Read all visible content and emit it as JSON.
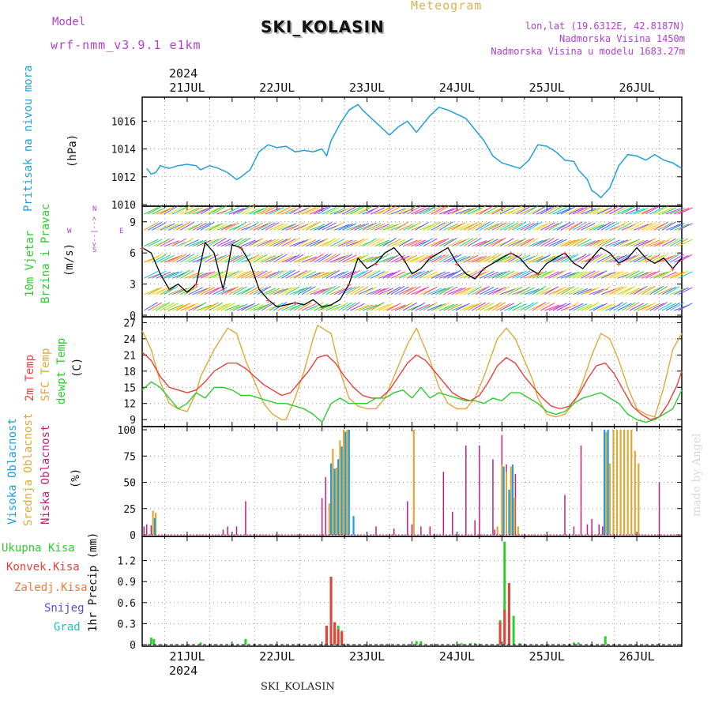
{
  "header": {
    "model_label": "Model",
    "model_name": "wrf-nmm_v3.9.1 e1km",
    "title": "SKI_KOLASIN",
    "meteogram_label": "Meteogram",
    "lonlat": "lon,lat (19.6312E, 42.8187N)",
    "altitude": "Nadmorska Visina 1450m",
    "model_altitude": "Nadmorska Visina u modelu 1683.27m",
    "year_top": "2024",
    "year_bottom": "2024",
    "footer_station": "SKI_KOLASIN",
    "watermark": "made by Angel"
  },
  "colors": {
    "pressure": "#1f9fe0",
    "temp2m": "#e8403a",
    "sfc": "#e0a838",
    "dew": "#2ecc2e",
    "low_cloud": "#c0207c",
    "mid_cloud": "#e0a838",
    "high_cloud": "#1f9fe0",
    "total_precip": "#2ecc2e",
    "conv_precip": "#e8403a",
    "frozen": "#f07a3a",
    "snow": "#5050e0",
    "hail": "#20c0c0",
    "wind_axis": "#b040d0"
  },
  "panel_labels": {
    "pressure": {
      "name": "Pritisak na nivou mora",
      "unit": "(hPa)"
    },
    "wind": {
      "name1": "10m Vjetar",
      "name2": "Brzina i Pravac",
      "unit": "(m/s)",
      "compass_n": "N",
      "compass_s": "S",
      "compass_w": "W",
      "compass_e": "E",
      "compass_arrows": "<--|-->"
    },
    "temp": {
      "name1": "2m Temp",
      "name2": "SFC Temp",
      "name3": "dewpt Temp",
      "unit": "(C)"
    },
    "cloud": {
      "name1": "Visoka Oblacnost",
      "name2": "Srednja Oblacnost",
      "name3": "Niska Oblacnost",
      "unit": "(%)"
    },
    "precip": {
      "name1": "Ukupna Kisa",
      "name2": "Konvek.Kisa",
      "name3": "Zaledj.Kisa",
      "name4": "Snijeg",
      "name5": "Grad",
      "unit": "1hr Precip (mm)"
    }
  },
  "chart_data": [
    {
      "type": "line",
      "name": "pressure",
      "x_range": [
        20.5,
        26.5
      ],
      "ylim": [
        1010,
        1017.5
      ],
      "yticks": [
        "1010",
        "1012",
        "1014",
        "1016"
      ],
      "xtick_labels": [
        "21JUL",
        "22JUL",
        "23JUL",
        "24JUL",
        "25JUL",
        "26JUL"
      ],
      "x": [
        20.55,
        20.6,
        20.65,
        20.7,
        20.8,
        20.9,
        21.0,
        21.1,
        21.15,
        21.25,
        21.35,
        21.45,
        21.55,
        21.6,
        21.7,
        21.8,
        21.9,
        22.0,
        22.1,
        22.2,
        22.3,
        22.4,
        22.5,
        22.55,
        22.6,
        22.7,
        22.8,
        22.9,
        22.95,
        23.05,
        23.15,
        23.25,
        23.35,
        23.45,
        23.55,
        23.6,
        23.7,
        23.8,
        23.9,
        24.0,
        24.1,
        24.2,
        24.3,
        24.4,
        24.5,
        24.6,
        24.7,
        24.8,
        24.9,
        25.0,
        25.1,
        25.2,
        25.3,
        25.35,
        25.45,
        25.5,
        25.55,
        25.6,
        25.7,
        25.8,
        25.9,
        26.0,
        26.1,
        26.2,
        26.3,
        26.4,
        26.5
      ],
      "y": [
        1012.6,
        1012.2,
        1012.3,
        1012.8,
        1012.6,
        1012.8,
        1012.9,
        1012.8,
        1012.5,
        1012.8,
        1012.6,
        1012.3,
        1011.8,
        1012.0,
        1012.5,
        1013.8,
        1014.3,
        1014.1,
        1014.2,
        1013.8,
        1013.9,
        1013.8,
        1014.0,
        1013.5,
        1014.6,
        1015.8,
        1016.8,
        1017.2,
        1016.8,
        1016.2,
        1015.6,
        1015.0,
        1015.6,
        1016.0,
        1015.2,
        1015.6,
        1016.4,
        1017.0,
        1016.8,
        1016.5,
        1016.2,
        1015.4,
        1014.6,
        1013.5,
        1013.0,
        1012.8,
        1012.6,
        1013.2,
        1014.3,
        1014.2,
        1013.8,
        1013.2,
        1013.1,
        1012.5,
        1011.8,
        1011.0,
        1010.8,
        1010.5,
        1011.2,
        1012.8,
        1013.6,
        1013.5,
        1013.2,
        1013.6,
        1013.2,
        1013.0,
        1012.6
      ]
    },
    {
      "type": "scatter",
      "name": "wind",
      "x_range": [
        20.5,
        26.5
      ],
      "ylim": [
        0,
        10.2
      ],
      "yticks": [
        "0",
        "3",
        "6",
        "9"
      ],
      "xtick_labels": [
        "21JUL",
        "22JUL",
        "23JUL",
        "24JUL",
        "25JUL",
        "26JUL"
      ],
      "speed_x": [
        20.5,
        20.6,
        20.7,
        20.8,
        20.9,
        21.0,
        21.1,
        21.2,
        21.3,
        21.4,
        21.45,
        21.5,
        21.6,
        21.7,
        21.8,
        21.9,
        22.0,
        22.1,
        22.2,
        22.3,
        22.4,
        22.5,
        22.6,
        22.7,
        22.8,
        22.9,
        23.0,
        23.1,
        23.2,
        23.3,
        23.4,
        23.5,
        23.6,
        23.7,
        23.8,
        23.9,
        24.0,
        24.1,
        24.2,
        24.3,
        24.4,
        24.5,
        24.6,
        24.7,
        24.8,
        24.9,
        25.0,
        25.1,
        25.2,
        25.3,
        25.4,
        25.5,
        25.6,
        25.7,
        25.8,
        25.9,
        26.0,
        26.1,
        26.2,
        26.3,
        26.4,
        26.5
      ],
      "speed": [
        6.5,
        6.0,
        4.0,
        2.5,
        3.0,
        2.2,
        3.0,
        7.0,
        6.0,
        2.5,
        4.5,
        6.8,
        6.5,
        5.0,
        2.5,
        1.5,
        0.8,
        1.0,
        1.2,
        1.0,
        1.5,
        0.8,
        1.0,
        1.5,
        3.0,
        5.5,
        4.5,
        5.0,
        6.0,
        6.5,
        5.5,
        4.0,
        4.5,
        5.5,
        6.0,
        6.5,
        5.0,
        4.0,
        3.5,
        4.5,
        5.0,
        5.5,
        6.0,
        5.5,
        4.5,
        4.0,
        5.0,
        5.5,
        6.0,
        5.0,
        4.5,
        5.5,
        6.5,
        6.0,
        5.0,
        5.5,
        6.5,
        5.5,
        5.0,
        5.5,
        4.5,
        5.5
      ]
    },
    {
      "type": "line",
      "name": "temperature",
      "x_range": [
        20.5,
        26.5
      ],
      "ylim": [
        8,
        27.5
      ],
      "yticks": [
        "9",
        "12",
        "15",
        "18",
        "21",
        "24",
        "27"
      ],
      "xtick_labels": [
        "21JUL",
        "22JUL",
        "23JUL",
        "24JUL",
        "25JUL",
        "26JUL"
      ],
      "series": [
        {
          "key": "sfc",
          "x": [
            20.5,
            20.6,
            20.7,
            20.8,
            20.9,
            21.0,
            21.1,
            21.15,
            21.3,
            21.45,
            21.55,
            21.65,
            21.75,
            21.85,
            21.95,
            22.05,
            22.1,
            22.2,
            22.3,
            22.4,
            22.45,
            22.6,
            22.7,
            22.8,
            22.9,
            23.0,
            23.1,
            23.2,
            23.3,
            23.45,
            23.55,
            23.6,
            23.7,
            23.8,
            23.9,
            24.0,
            24.1,
            24.2,
            24.3,
            24.45,
            24.55,
            24.65,
            24.75,
            24.85,
            24.9,
            25.0,
            25.1,
            25.2,
            25.3,
            25.4,
            25.5,
            25.6,
            25.7,
            25.8,
            25.9,
            26.0,
            26.1,
            26.2,
            26.3,
            26.4,
            26.5
          ],
          "y": [
            25.5,
            22,
            16,
            12,
            11,
            10.5,
            14,
            17,
            22,
            26,
            25,
            20,
            16,
            12,
            10,
            9,
            9,
            13,
            18,
            24,
            26.5,
            25,
            18,
            13,
            11.5,
            11,
            11,
            13,
            17,
            23,
            26,
            24,
            20,
            15,
            12,
            11,
            11,
            13,
            17,
            24,
            26,
            24,
            20,
            16,
            13,
            10,
            9.5,
            10,
            12,
            16,
            21,
            25,
            24,
            20,
            15,
            11,
            10,
            9.5,
            15,
            22,
            25
          ]
        },
        {
          "key": "temp2m",
          "x": [
            20.5,
            20.6,
            20.7,
            20.8,
            20.9,
            21.0,
            21.1,
            21.2,
            21.3,
            21.45,
            21.55,
            21.65,
            21.75,
            21.85,
            21.95,
            22.05,
            22.15,
            22.25,
            22.35,
            22.45,
            22.55,
            22.65,
            22.75,
            22.85,
            22.95,
            23.05,
            23.15,
            23.25,
            23.35,
            23.45,
            23.55,
            23.65,
            23.75,
            23.85,
            23.95,
            24.05,
            24.15,
            24.25,
            24.35,
            24.45,
            24.55,
            24.65,
            24.75,
            24.85,
            24.95,
            25.05,
            25.15,
            25.25,
            25.35,
            25.45,
            25.55,
            25.65,
            25.75,
            25.85,
            25.95,
            26.05,
            26.15,
            26.25,
            26.35,
            26.45,
            26.5
          ],
          "y": [
            21.5,
            20,
            17,
            15,
            14.5,
            14,
            14.5,
            16,
            18,
            19.5,
            19.5,
            18.5,
            17,
            15.5,
            14.5,
            13.5,
            14,
            16,
            18,
            20.5,
            21,
            19.5,
            17,
            15,
            13.5,
            13,
            13,
            14.5,
            17,
            19.5,
            21,
            20,
            18,
            16,
            14,
            13,
            12.5,
            13.5,
            16,
            19,
            20.5,
            19.5,
            17,
            15,
            13,
            11.5,
            11,
            11.5,
            13.5,
            16.5,
            19,
            19.5,
            17.5,
            14.5,
            11.5,
            10,
            9,
            9.5,
            12,
            15.5,
            18
          ]
        },
        {
          "key": "dew",
          "x": [
            20.5,
            20.6,
            20.7,
            20.8,
            20.9,
            21.0,
            21.1,
            21.2,
            21.3,
            21.4,
            21.5,
            21.6,
            21.7,
            21.8,
            21.9,
            22.0,
            22.1,
            22.2,
            22.3,
            22.4,
            22.5,
            22.6,
            22.7,
            22.8,
            22.9,
            23.0,
            23.1,
            23.2,
            23.3,
            23.4,
            23.5,
            23.6,
            23.7,
            23.8,
            23.9,
            24.0,
            24.1,
            24.2,
            24.3,
            24.4,
            24.5,
            24.6,
            24.7,
            24.8,
            24.9,
            25.0,
            25.1,
            25.2,
            25.3,
            25.4,
            25.5,
            25.6,
            25.7,
            25.8,
            25.9,
            26.0,
            26.1,
            26.2,
            26.3,
            26.4,
            26.5
          ],
          "y": [
            14.5,
            16,
            15,
            13,
            11,
            12,
            14,
            13,
            15,
            15,
            14.5,
            13.5,
            13.5,
            13,
            12.5,
            12,
            12,
            11.5,
            11,
            10,
            8.5,
            12,
            13,
            12,
            12,
            12,
            13,
            13,
            14,
            14.5,
            13,
            15,
            13,
            14,
            13.5,
            13,
            12.5,
            12.5,
            12,
            13,
            12.5,
            14,
            14,
            13,
            12,
            10.5,
            10,
            10.5,
            12,
            13,
            13.5,
            14,
            13,
            12,
            10,
            9,
            8.5,
            9,
            10,
            11,
            14.5
          ]
        }
      ]
    },
    {
      "type": "bar",
      "name": "cloud",
      "x_range": [
        20.5,
        26.5
      ],
      "ylim": [
        0,
        100
      ],
      "yticks": [
        "0",
        "25",
        "50",
        "75",
        "100"
      ],
      "xtick_labels": [
        "21JUL",
        "22JUL",
        "23JUL",
        "24JUL",
        "25JUL",
        "26JUL"
      ],
      "series": [
        {
          "key": "low_cloud",
          "x": [
            20.52,
            20.55,
            20.6,
            21.4,
            21.45,
            21.55,
            21.65,
            22.5,
            22.54,
            23.1,
            23.3,
            23.45,
            23.5,
            23.6,
            23.7,
            23.85,
            23.95,
            24.1,
            24.2,
            24.25,
            24.4,
            24.42,
            24.5,
            24.55,
            24.65,
            25.2,
            25.3,
            25.38,
            25.45,
            25.5,
            25.58,
            25.62,
            26.25
          ],
          "y": [
            8,
            10,
            9,
            5,
            8,
            8,
            32,
            35,
            55,
            8,
            6,
            32,
            10,
            8,
            8,
            60,
            22,
            85,
            14,
            85,
            72,
            5,
            95,
            67,
            58,
            38,
            8,
            85,
            10,
            15,
            10,
            8,
            50
          ]
        },
        {
          "key": "mid_cloud",
          "x": [
            20.62,
            20.65,
            22.58,
            22.62,
            22.66,
            22.7,
            22.74,
            22.78,
            23.52,
            24.45,
            24.5,
            24.55,
            24.6,
            24.64,
            24.68,
            25.66,
            25.7,
            25.74,
            25.78,
            25.82,
            25.86,
            25.9,
            25.94,
            25.98,
            26.02
          ],
          "y": [
            23,
            21,
            30,
            82,
            64,
            90,
            100,
            100,
            100,
            8,
            67,
            60,
            65,
            35,
            8,
            98,
            68,
            100,
            100,
            100,
            100,
            100,
            100,
            80,
            68
          ]
        },
        {
          "key": "high_cloud",
          "x": [
            20.64,
            22.6,
            22.64,
            22.68,
            22.72,
            22.76,
            22.8,
            22.85,
            24.52,
            24.58,
            24.62,
            25.64,
            25.68
          ],
          "y": [
            16,
            68,
            63,
            72,
            84,
            98,
            100,
            18,
            65,
            43,
            67,
            100,
            100
          ]
        }
      ]
    },
    {
      "type": "bar",
      "name": "precipitation",
      "x_range": [
        20.5,
        26.5
      ],
      "ylim": [
        0,
        1.5
      ],
      "yticks": [
        "0",
        "0.3",
        "0.6",
        "0.9",
        "1.2"
      ],
      "xtick_labels": [
        "21JUL",
        "22JUL",
        "23JUL",
        "24JUL",
        "25JUL",
        "26JUL"
      ],
      "series": [
        {
          "key": "total_precip",
          "x": [
            20.6,
            20.63,
            21.15,
            21.5,
            21.65,
            22.55,
            22.6,
            22.64,
            22.68,
            22.72,
            22.78,
            23.55,
            23.6,
            24.0,
            24.05,
            24.15,
            24.2,
            24.48,
            24.53,
            24.58,
            24.63,
            24.7,
            25.3,
            25.35,
            25.65,
            26.25
          ],
          "y": [
            0.1,
            0.08,
            0.03,
            0.02,
            0.08,
            0.27,
            0.97,
            0.32,
            0.27,
            0.2,
            0.01,
            0.05,
            0.05,
            0.02,
            0.02,
            0.02,
            0.02,
            0.35,
            1.47,
            0.88,
            0.41,
            0.02,
            0.03,
            0.03,
            0.12,
            0.02
          ]
        },
        {
          "key": "conv_precip",
          "x": [
            22.55,
            22.6,
            22.64,
            22.68,
            22.72,
            24.48,
            24.53,
            24.58
          ],
          "y": [
            0.27,
            0.97,
            0.32,
            0.22,
            0.18,
            0.32,
            0.5,
            0.88
          ]
        }
      ]
    }
  ]
}
